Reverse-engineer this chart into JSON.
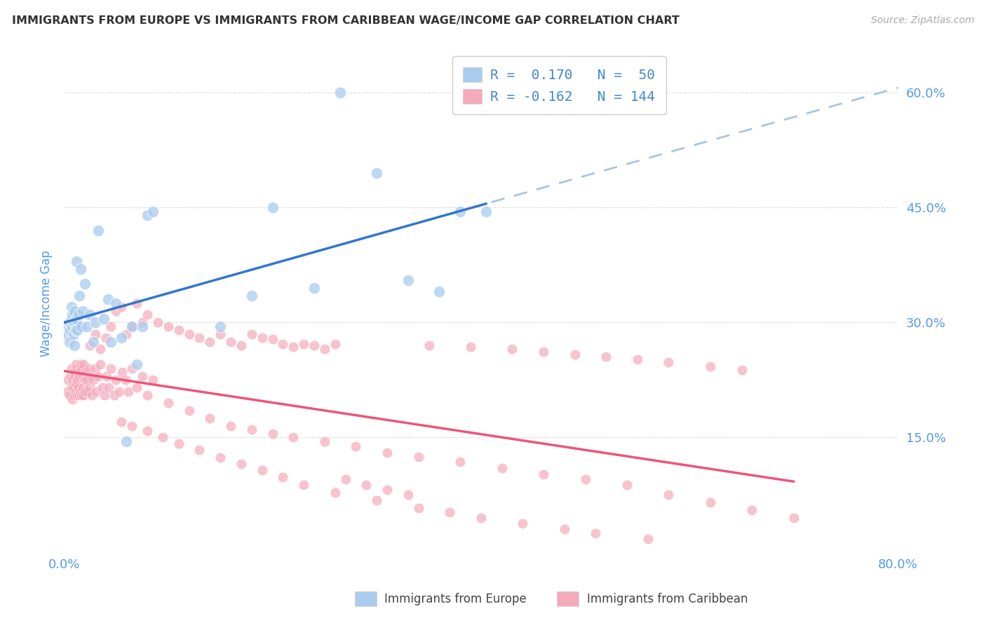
{
  "title": "IMMIGRANTS FROM EUROPE VS IMMIGRANTS FROM CARIBBEAN WAGE/INCOME GAP CORRELATION CHART",
  "source": "Source: ZipAtlas.com",
  "ylabel": "Wage/Income Gap",
  "xlim": [
    0.0,
    0.8
  ],
  "ylim": [
    0.0,
    0.65
  ],
  "europe_R": 0.17,
  "europe_N": 50,
  "caribbean_R": -0.162,
  "caribbean_N": 144,
  "europe_color": "#aaccee",
  "caribbean_color": "#f4aabb",
  "europe_line_color": "#3377cc",
  "caribbean_line_color": "#ee5577",
  "dashed_line_color": "#99bbdd",
  "title_color": "#333333",
  "source_color": "#aaaaaa",
  "axis_label_color": "#5599ee",
  "grid_color": "#dddddd",
  "background_color": "#ffffff",
  "legend_text_color": "#4488cc",
  "europe_x": [
    0.003,
    0.004,
    0.005,
    0.005,
    0.006,
    0.007,
    0.007,
    0.008,
    0.008,
    0.009,
    0.009,
    0.01,
    0.01,
    0.011,
    0.011,
    0.012,
    0.012,
    0.013,
    0.014,
    0.015,
    0.016,
    0.017,
    0.018,
    0.02,
    0.022,
    0.025,
    0.028,
    0.03,
    0.033,
    0.038,
    0.042,
    0.045,
    0.05,
    0.055,
    0.06,
    0.065,
    0.07,
    0.075,
    0.08,
    0.085,
    0.15,
    0.18,
    0.2,
    0.24,
    0.265,
    0.3,
    0.33,
    0.36,
    0.38,
    0.405
  ],
  "europe_y": [
    0.285,
    0.295,
    0.3,
    0.275,
    0.29,
    0.305,
    0.32,
    0.295,
    0.31,
    0.285,
    0.3,
    0.27,
    0.315,
    0.3,
    0.29,
    0.38,
    0.305,
    0.29,
    0.31,
    0.335,
    0.37,
    0.295,
    0.315,
    0.35,
    0.295,
    0.31,
    0.275,
    0.3,
    0.42,
    0.305,
    0.33,
    0.275,
    0.325,
    0.28,
    0.145,
    0.295,
    0.245,
    0.295,
    0.44,
    0.445,
    0.295,
    0.335,
    0.45,
    0.345,
    0.6,
    0.495,
    0.355,
    0.34,
    0.445,
    0.445
  ],
  "caribbean_x": [
    0.003,
    0.004,
    0.005,
    0.006,
    0.007,
    0.007,
    0.008,
    0.008,
    0.009,
    0.009,
    0.01,
    0.01,
    0.011,
    0.011,
    0.012,
    0.012,
    0.013,
    0.013,
    0.014,
    0.014,
    0.015,
    0.015,
    0.016,
    0.016,
    0.017,
    0.017,
    0.018,
    0.018,
    0.019,
    0.019,
    0.02,
    0.02,
    0.021,
    0.022,
    0.023,
    0.024,
    0.025,
    0.026,
    0.027,
    0.028,
    0.03,
    0.031,
    0.033,
    0.035,
    0.037,
    0.039,
    0.041,
    0.043,
    0.045,
    0.048,
    0.05,
    0.053,
    0.056,
    0.059,
    0.062,
    0.065,
    0.07,
    0.075,
    0.08,
    0.085,
    0.025,
    0.03,
    0.035,
    0.04,
    0.045,
    0.05,
    0.055,
    0.06,
    0.065,
    0.07,
    0.075,
    0.08,
    0.09,
    0.1,
    0.11,
    0.12,
    0.13,
    0.14,
    0.15,
    0.16,
    0.17,
    0.18,
    0.19,
    0.2,
    0.21,
    0.22,
    0.23,
    0.24,
    0.25,
    0.26,
    0.1,
    0.12,
    0.14,
    0.16,
    0.18,
    0.2,
    0.22,
    0.25,
    0.28,
    0.31,
    0.34,
    0.38,
    0.42,
    0.46,
    0.5,
    0.54,
    0.58,
    0.62,
    0.66,
    0.7,
    0.35,
    0.39,
    0.43,
    0.46,
    0.49,
    0.52,
    0.55,
    0.58,
    0.62,
    0.65,
    0.055,
    0.065,
    0.08,
    0.095,
    0.11,
    0.13,
    0.15,
    0.17,
    0.19,
    0.21,
    0.23,
    0.26,
    0.3,
    0.34,
    0.37,
    0.4,
    0.44,
    0.48,
    0.51,
    0.56,
    0.27,
    0.29,
    0.31,
    0.33
  ],
  "caribbean_y": [
    0.21,
    0.225,
    0.205,
    0.23,
    0.215,
    0.24,
    0.2,
    0.225,
    0.235,
    0.215,
    0.205,
    0.23,
    0.245,
    0.21,
    0.22,
    0.24,
    0.205,
    0.225,
    0.235,
    0.215,
    0.205,
    0.23,
    0.245,
    0.21,
    0.24,
    0.205,
    0.23,
    0.215,
    0.245,
    0.205,
    0.225,
    0.21,
    0.235,
    0.225,
    0.21,
    0.24,
    0.215,
    0.23,
    0.205,
    0.225,
    0.24,
    0.21,
    0.23,
    0.245,
    0.215,
    0.205,
    0.23,
    0.215,
    0.24,
    0.205,
    0.225,
    0.21,
    0.235,
    0.225,
    0.21,
    0.24,
    0.215,
    0.23,
    0.205,
    0.225,
    0.27,
    0.285,
    0.265,
    0.28,
    0.295,
    0.315,
    0.32,
    0.285,
    0.295,
    0.325,
    0.3,
    0.31,
    0.3,
    0.295,
    0.29,
    0.285,
    0.28,
    0.275,
    0.285,
    0.275,
    0.27,
    0.285,
    0.28,
    0.278,
    0.272,
    0.268,
    0.272,
    0.27,
    0.265,
    0.272,
    0.195,
    0.185,
    0.175,
    0.165,
    0.16,
    0.155,
    0.15,
    0.145,
    0.138,
    0.13,
    0.125,
    0.118,
    0.11,
    0.102,
    0.095,
    0.088,
    0.075,
    0.065,
    0.055,
    0.045,
    0.27,
    0.268,
    0.265,
    0.262,
    0.258,
    0.255,
    0.252,
    0.248,
    0.243,
    0.238,
    0.17,
    0.165,
    0.158,
    0.15,
    0.142,
    0.134,
    0.124,
    0.115,
    0.107,
    0.098,
    0.088,
    0.078,
    0.068,
    0.058,
    0.052,
    0.045,
    0.038,
    0.03,
    0.025,
    0.018,
    0.095,
    0.088,
    0.082,
    0.075
  ]
}
